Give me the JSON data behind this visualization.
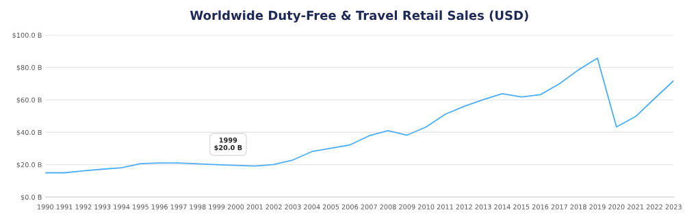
{
  "chart_data": {
    "type": "line",
    "title": "Worldwide Duty-Free & Travel Retail Sales (USD)",
    "x": [
      1990,
      1991,
      1992,
      1993,
      1994,
      1995,
      1996,
      1997,
      1998,
      1999,
      2000,
      2001,
      2002,
      2003,
      2004,
      2005,
      2006,
      2007,
      2008,
      2009,
      2010,
      2011,
      2012,
      2013,
      2014,
      2015,
      2016,
      2017,
      2018,
      2019,
      2020,
      2021,
      2022,
      2023
    ],
    "series": [
      {
        "color": "#4badf7",
        "values": [
          15.0,
          15.0,
          16.2,
          17.2,
          18.1,
          20.6,
          21.1,
          21.1,
          20.5,
          20.0,
          19.6,
          19.2,
          20.1,
          22.9,
          28.1,
          30.1,
          32.2,
          37.8,
          41.0,
          38.2,
          43.3,
          51.1,
          56.0,
          60.1,
          63.8,
          61.8,
          63.2,
          69.9,
          78.5,
          85.7,
          43.3,
          49.7,
          60.8,
          71.8
        ]
      }
    ],
    "xlim": [
      1990,
      2023
    ],
    "xticks": [
      1990,
      1991,
      1992,
      1993,
      1994,
      1995,
      1996,
      1997,
      1998,
      1999,
      2000,
      2001,
      2002,
      2003,
      2004,
      2005,
      2006,
      2007,
      2008,
      2009,
      2010,
      2011,
      2012,
      2013,
      2014,
      2015,
      2016,
      2017,
      2018,
      2019,
      2020,
      2021,
      2022,
      2023
    ],
    "ylim": [
      0,
      100
    ],
    "yticks": [
      {
        "value": 0,
        "label": "$0.0 B"
      },
      {
        "value": 20,
        "label": "$20.0 B"
      },
      {
        "value": 40,
        "label": "$40.0 B"
      },
      {
        "value": 60,
        "label": "$60.0 B"
      },
      {
        "value": 80,
        "label": "$80.0 B"
      },
      {
        "value": 100,
        "label": "$100.0 B"
      }
    ],
    "grid": "y",
    "marker": "none",
    "line_style": "solid",
    "annotations": [
      {
        "text": "1999\n$20.0 B",
        "x": 1999,
        "y": 20.0
      }
    ]
  }
}
